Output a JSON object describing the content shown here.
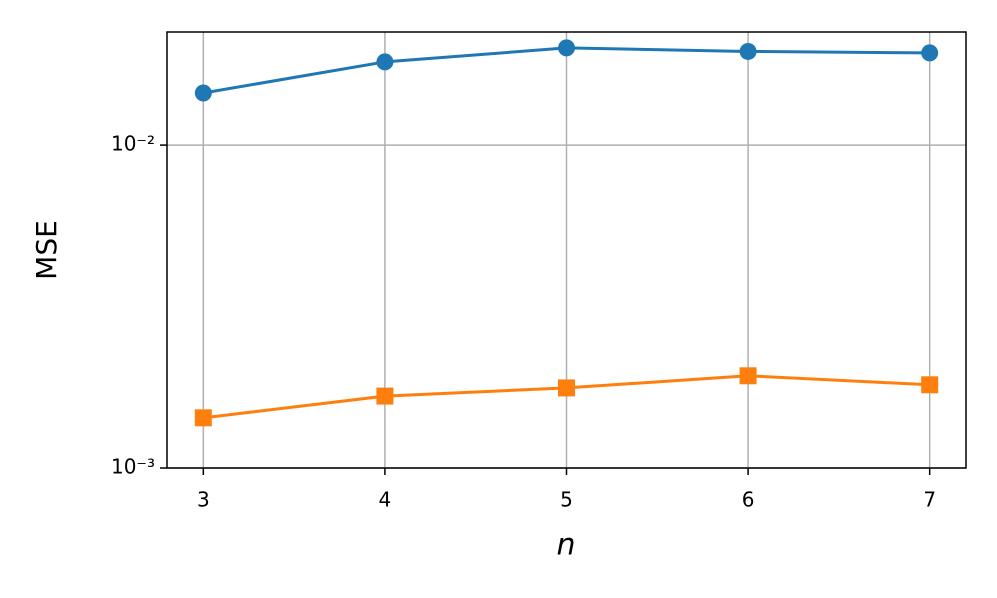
{
  "chart_data": {
    "type": "line",
    "x_label": "n",
    "y_label": "MSE",
    "x": [
      3,
      4,
      5,
      6,
      7
    ],
    "series": [
      {
        "color": "#1f77b4",
        "marker": "circle",
        "values": [
          0.0145,
          0.0181,
          0.02,
          0.0195,
          0.0193
        ]
      },
      {
        "color": "#ff7f0e",
        "marker": "square",
        "values": [
          0.00143,
          0.00167,
          0.00177,
          0.00193,
          0.00181
        ]
      }
    ],
    "xlim": [
      2.8,
      7.2
    ],
    "xticks": [
      3,
      4,
      5,
      6,
      7
    ],
    "ylim": [
      0.001,
      0.0224
    ],
    "yscale": "log",
    "yticks": [
      {
        "value": 0.001,
        "label": "10⁻³"
      },
      {
        "value": 0.01,
        "label": "10⁻²"
      }
    ],
    "grid": true
  }
}
